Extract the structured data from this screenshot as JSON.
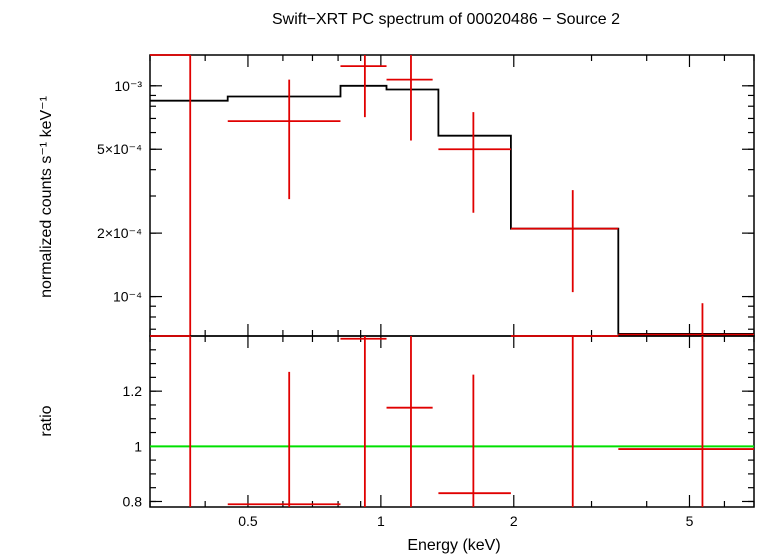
{
  "chart_data": {
    "type": "scatter",
    "title": "Swift−XRT PC spectrum of 00020486 − Source 2",
    "xlabel": "Energy (keV)",
    "xscale": "log",
    "xlim": [
      0.3,
      7.0
    ],
    "x_ticks": [
      {
        "value": 0.5,
        "label": "0.5"
      },
      {
        "value": 1,
        "label": "1"
      },
      {
        "value": 2,
        "label": "2"
      },
      {
        "value": 5,
        "label": "5"
      }
    ],
    "panels": [
      {
        "name": "spectrum",
        "ylabel": "normalized counts s⁻¹ keV⁻¹",
        "yscale": "log",
        "ylim": [
          6.5e-05,
          0.0014
        ],
        "y_ticks": [
          {
            "value": 0.001,
            "label": "10⁻³"
          },
          {
            "value": 0.0005,
            "label": "5×10⁻⁴"
          },
          {
            "value": 0.0002,
            "label": "2×10⁻⁴"
          },
          {
            "value": 0.0001,
            "label": "10⁻⁴"
          }
        ],
        "data": [
          {
            "x": 0.37,
            "xlo": 0.3,
            "xhi": 0.37,
            "y": 0.0014,
            "ylo": 6.5e-05,
            "yhi": 0.0014
          },
          {
            "x": 0.62,
            "xlo": 0.45,
            "xhi": 0.81,
            "y": 0.00068,
            "ylo": 0.00029,
            "yhi": 0.00107
          },
          {
            "x": 0.92,
            "xlo": 0.81,
            "xhi": 1.03,
            "y": 0.00124,
            "ylo": 0.00071,
            "yhi": 0.0014
          },
          {
            "x": 1.17,
            "xlo": 1.03,
            "xhi": 1.31,
            "y": 0.00107,
            "ylo": 0.00055,
            "yhi": 0.0014
          },
          {
            "x": 1.62,
            "xlo": 1.35,
            "xhi": 1.97,
            "y": 0.0005,
            "ylo": 0.00025,
            "yhi": 0.00075
          },
          {
            "x": 2.72,
            "xlo": 1.97,
            "xhi": 3.45,
            "y": 0.00021,
            "ylo": 0.000105,
            "yhi": 0.00032
          },
          {
            "x": 5.35,
            "xlo": 3.45,
            "xhi": 7.0,
            "y": 6.6e-05,
            "ylo": 6.5e-05,
            "yhi": 9.3e-05
          }
        ],
        "model_steps": [
          {
            "xlo": 0.3,
            "xhi": 0.45,
            "y": 0.00085
          },
          {
            "xlo": 0.45,
            "xhi": 0.81,
            "y": 0.00089
          },
          {
            "xlo": 0.81,
            "xhi": 1.03,
            "y": 0.001
          },
          {
            "xlo": 1.03,
            "xhi": 1.35,
            "y": 0.00096
          },
          {
            "xlo": 1.35,
            "xhi": 1.97,
            "y": 0.00058
          },
          {
            "xlo": 1.97,
            "xhi": 3.45,
            "y": 0.00021
          },
          {
            "xlo": 3.45,
            "xhi": 7.0,
            "y": 6.65e-05
          }
        ]
      },
      {
        "name": "ratio",
        "ylabel": "ratio",
        "yscale": "linear",
        "ylim": [
          0.78,
          1.4
        ],
        "y_ticks": [
          {
            "value": 0.8,
            "label": "0.8"
          },
          {
            "value": 1,
            "label": "1"
          },
          {
            "value": 1.2,
            "label": "1.2"
          }
        ],
        "reference_line": 1,
        "data": [
          {
            "x": 0.37,
            "xlo": 0.3,
            "xhi": 0.37,
            "y": 1.4,
            "ylo": 0.78,
            "yhi": 1.4
          },
          {
            "x": 0.62,
            "xlo": 0.45,
            "xhi": 0.81,
            "y": 0.79,
            "ylo": 0.78,
            "yhi": 1.27
          },
          {
            "x": 0.92,
            "xlo": 0.81,
            "xhi": 1.03,
            "y": 1.39,
            "ylo": 0.78,
            "yhi": 1.4
          },
          {
            "x": 1.17,
            "xlo": 1.03,
            "xhi": 1.31,
            "y": 1.14,
            "ylo": 0.78,
            "yhi": 1.4
          },
          {
            "x": 1.62,
            "xlo": 1.35,
            "xhi": 1.97,
            "y": 0.83,
            "ylo": 0.78,
            "yhi": 1.26
          },
          {
            "x": 2.72,
            "xlo": 1.97,
            "xhi": 3.45,
            "y": 1.4,
            "ylo": 0.78,
            "yhi": 1.4
          },
          {
            "x": 5.35,
            "xlo": 3.45,
            "xhi": 7.0,
            "y": 0.99,
            "ylo": 0.78,
            "yhi": 1.4
          }
        ]
      }
    ],
    "colors": {
      "data": "#e00000",
      "model": "#000000",
      "reference": "#00e000"
    }
  }
}
